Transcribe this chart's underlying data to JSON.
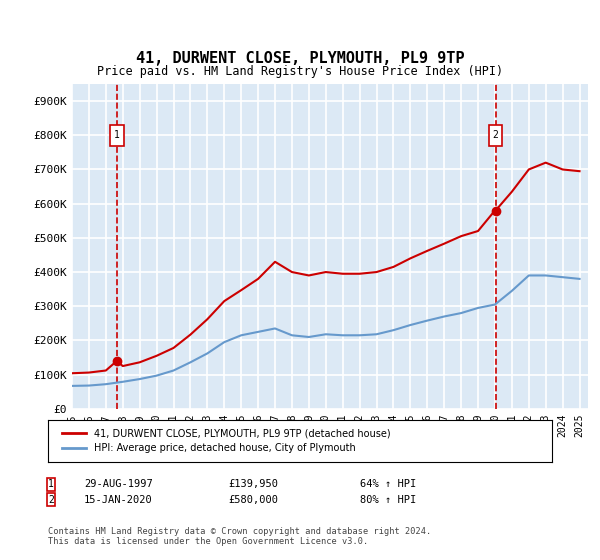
{
  "title": "41, DURWENT CLOSE, PLYMOUTH, PL9 9TP",
  "subtitle": "Price paid vs. HM Land Registry's House Price Index (HPI)",
  "background_color": "#dce9f5",
  "plot_bg_color": "#dce9f5",
  "red_line_color": "#cc0000",
  "blue_line_color": "#6699cc",
  "grid_color": "#ffffff",
  "ylim": [
    0,
    950000
  ],
  "yticks": [
    0,
    100000,
    200000,
    300000,
    400000,
    500000,
    600000,
    700000,
    800000,
    900000
  ],
  "ytick_labels": [
    "£0",
    "£100K",
    "£200K",
    "£300K",
    "£400K",
    "£500K",
    "£600K",
    "£700K",
    "£800K",
    "£900K"
  ],
  "sale1_date": "29-AUG-1997",
  "sale1_price": 139950,
  "sale1_hpi": "64% ↑ HPI",
  "sale1_year": 1997.65,
  "sale2_date": "15-JAN-2020",
  "sale2_price": 580000,
  "sale2_hpi": "80% ↑ HPI",
  "sale2_year": 2020.04,
  "legend_label1": "41, DURWENT CLOSE, PLYMOUTH, PL9 9TP (detached house)",
  "legend_label2": "HPI: Average price, detached house, City of Plymouth",
  "footer": "Contains HM Land Registry data © Crown copyright and database right 2024.\nThis data is licensed under the Open Government Licence v3.0.",
  "hpi_years": [
    1995,
    1996,
    1997,
    1998,
    1999,
    2000,
    2001,
    2002,
    2003,
    2004,
    2005,
    2006,
    2007,
    2008,
    2009,
    2010,
    2011,
    2012,
    2013,
    2014,
    2015,
    2016,
    2017,
    2018,
    2019,
    2020,
    2021,
    2022,
    2023,
    2024,
    2025
  ],
  "hpi_values": [
    67000,
    68000,
    72000,
    79000,
    87000,
    97000,
    112000,
    136000,
    162000,
    195000,
    215000,
    225000,
    235000,
    215000,
    210000,
    218000,
    215000,
    215000,
    218000,
    230000,
    245000,
    258000,
    270000,
    280000,
    295000,
    305000,
    345000,
    390000,
    390000,
    385000,
    380000
  ],
  "red_years": [
    1995,
    1996,
    1997,
    1997.65,
    1998,
    1999,
    2000,
    2001,
    2002,
    2003,
    2004,
    2005,
    2006,
    2007,
    2008,
    2009,
    2010,
    2011,
    2012,
    2013,
    2014,
    2015,
    2016,
    2017,
    2018,
    2019,
    2020,
    2020.04,
    2021,
    2022,
    2023,
    2024,
    2025
  ],
  "red_values": [
    104000,
    106000,
    112000,
    139950,
    125000,
    136000,
    155000,
    178000,
    217000,
    262000,
    315000,
    347000,
    380000,
    430000,
    400000,
    390000,
    400000,
    395000,
    395000,
    400000,
    415000,
    440000,
    462000,
    483000,
    505000,
    520000,
    580000,
    580000,
    635000,
    700000,
    720000,
    700000,
    695000
  ]
}
